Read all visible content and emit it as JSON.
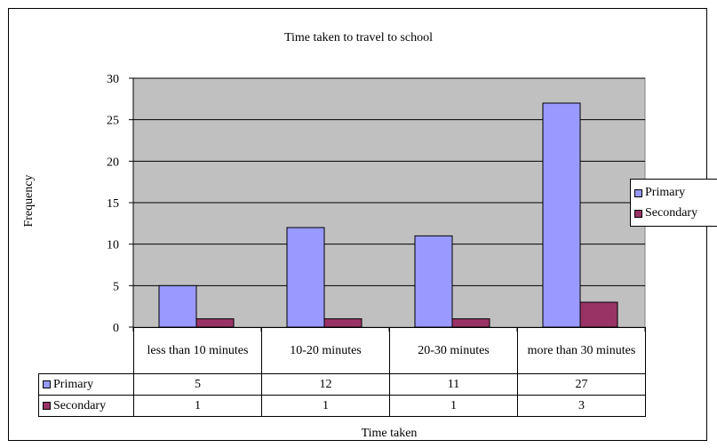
{
  "chart_data": {
    "type": "bar",
    "title": "Time taken to travel to school",
    "xlabel": "Time taken",
    "ylabel": "Frequency",
    "categories": [
      "less than 10 minutes",
      "10-20 minutes",
      "20-30 minutes",
      "more than 30 minutes"
    ],
    "series": [
      {
        "name": "Primary",
        "values": [
          5,
          12,
          11,
          27
        ],
        "color": "#9999ff"
      },
      {
        "name": "Secondary",
        "values": [
          1,
          1,
          1,
          3
        ],
        "color": "#993366"
      }
    ],
    "ylim": [
      0,
      30
    ],
    "yticks": [
      0,
      5,
      10,
      15,
      20,
      25,
      30
    ],
    "plot_background": "#c0c0c0",
    "grid": true,
    "legend_position": "right",
    "data_table": true
  }
}
